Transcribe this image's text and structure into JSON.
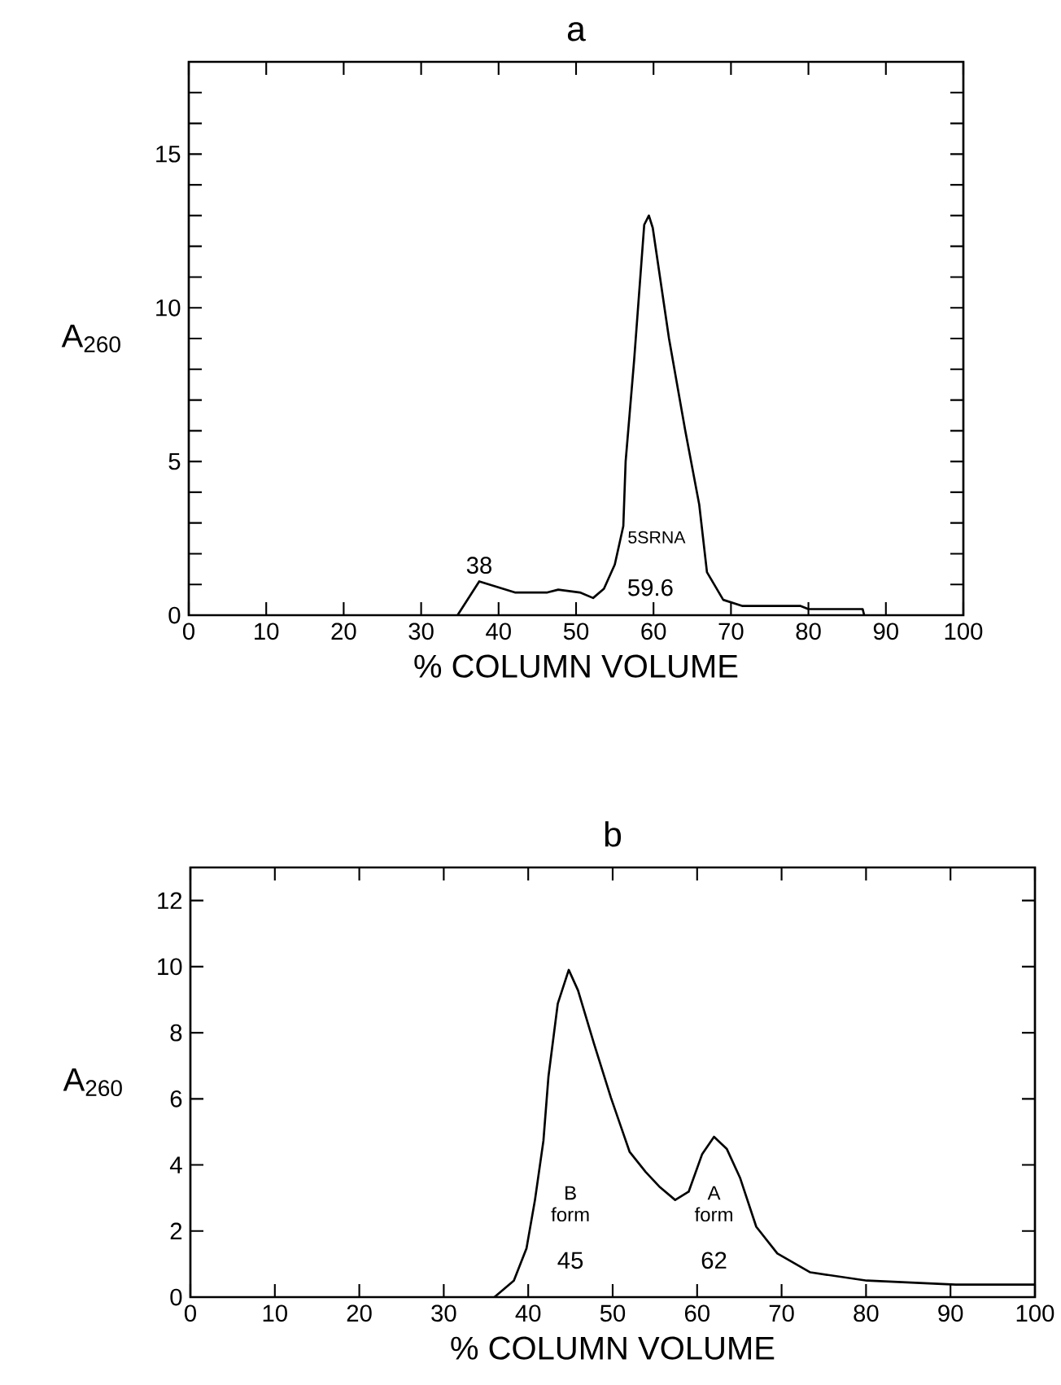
{
  "chart_data": [
    {
      "type": "line",
      "title": "a",
      "xlabel": "% COLUMN VOLUME",
      "ylabel": "A$_{260}$",
      "xlim": [
        0,
        100
      ],
      "xticks": [
        0,
        10,
        20,
        30,
        40,
        50,
        60,
        70,
        80,
        90,
        100
      ],
      "ylim": [
        0,
        18
      ],
      "yticks": [
        0,
        {
          "value": 1,
          "label": null
        },
        {
          "value": 2,
          "label": null
        },
        {
          "value": 3,
          "label": null
        },
        {
          "value": 4,
          "label": null
        },
        5,
        {
          "value": 6,
          "label": null
        },
        {
          "value": 7,
          "label": null
        },
        {
          "value": 8,
          "label": null
        },
        {
          "value": 9,
          "label": null
        },
        10,
        {
          "value": 11,
          "label": null
        },
        {
          "value": 12,
          "label": null
        },
        {
          "value": 13,
          "label": null
        },
        {
          "value": 14,
          "label": null
        },
        15,
        {
          "value": 16,
          "label": null
        },
        {
          "value": 17,
          "label": null
        }
      ],
      "grid": false,
      "marker": "none",
      "line_style": "solid",
      "x": [
        34.7,
        37.5,
        42.1,
        46.3,
        47.7,
        50.5,
        52.2,
        53.6,
        55.0,
        56.1,
        56.4,
        57.5,
        58.8,
        59.4,
        59.9,
        62.0,
        64.1,
        65.9,
        66.9,
        69.0,
        71.5,
        79.0,
        80.0,
        87.0,
        87.2
      ],
      "series": [
        {
          "color": "#000000",
          "values": [
            0,
            1.1,
            0.74,
            0.74,
            0.83,
            0.74,
            0.56,
            0.86,
            1.65,
            2.9,
            5.0,
            8.3,
            12.7,
            13.0,
            12.6,
            9.0,
            6.0,
            3.6,
            1.4,
            0.5,
            0.3,
            0.3,
            0.2,
            0.2,
            0
          ]
        }
      ],
      "annotations": [
        {
          "text": "38",
          "x": 37.5,
          "y": 1.1
        },
        "5SRNA",
        "59.6"
      ]
    },
    {
      "type": "line",
      "title": "b",
      "xlabel": "% COLUMN VOLUME",
      "ylabel": "A$_{260}$",
      "xlim": [
        0,
        100
      ],
      "xticks": [
        0,
        10,
        20,
        30,
        40,
        50,
        60,
        70,
        80,
        90,
        100
      ],
      "ylim": [
        0,
        13
      ],
      "yticks": [
        0,
        2,
        4,
        6,
        8,
        10,
        12
      ],
      "grid": false,
      "marker": "none",
      "line_style": "solid",
      "x": [
        36.0,
        38.3,
        39.8,
        40.8,
        41.8,
        42.4,
        43.5,
        44.8,
        45.9,
        47.8,
        49.8,
        52.0,
        53.9,
        55.5,
        57.4,
        59.0,
        60.6,
        62.0,
        63.5,
        65.1,
        67.0,
        69.5,
        73.4,
        80.1,
        90.6,
        100
      ],
      "series": [
        {
          "color": "#000000",
          "values": [
            0,
            0.5,
            1.48,
            2.94,
            4.73,
            6.68,
            8.88,
            9.9,
            9.28,
            7.66,
            6.03,
            4.4,
            3.79,
            3.35,
            2.94,
            3.19,
            4.33,
            4.85,
            4.49,
            3.6,
            2.13,
            1.32,
            0.75,
            0.5,
            0.38,
            0.38
          ]
        }
      ],
      "annotations": [
        "B form",
        "45",
        "A form",
        "62"
      ]
    }
  ]
}
